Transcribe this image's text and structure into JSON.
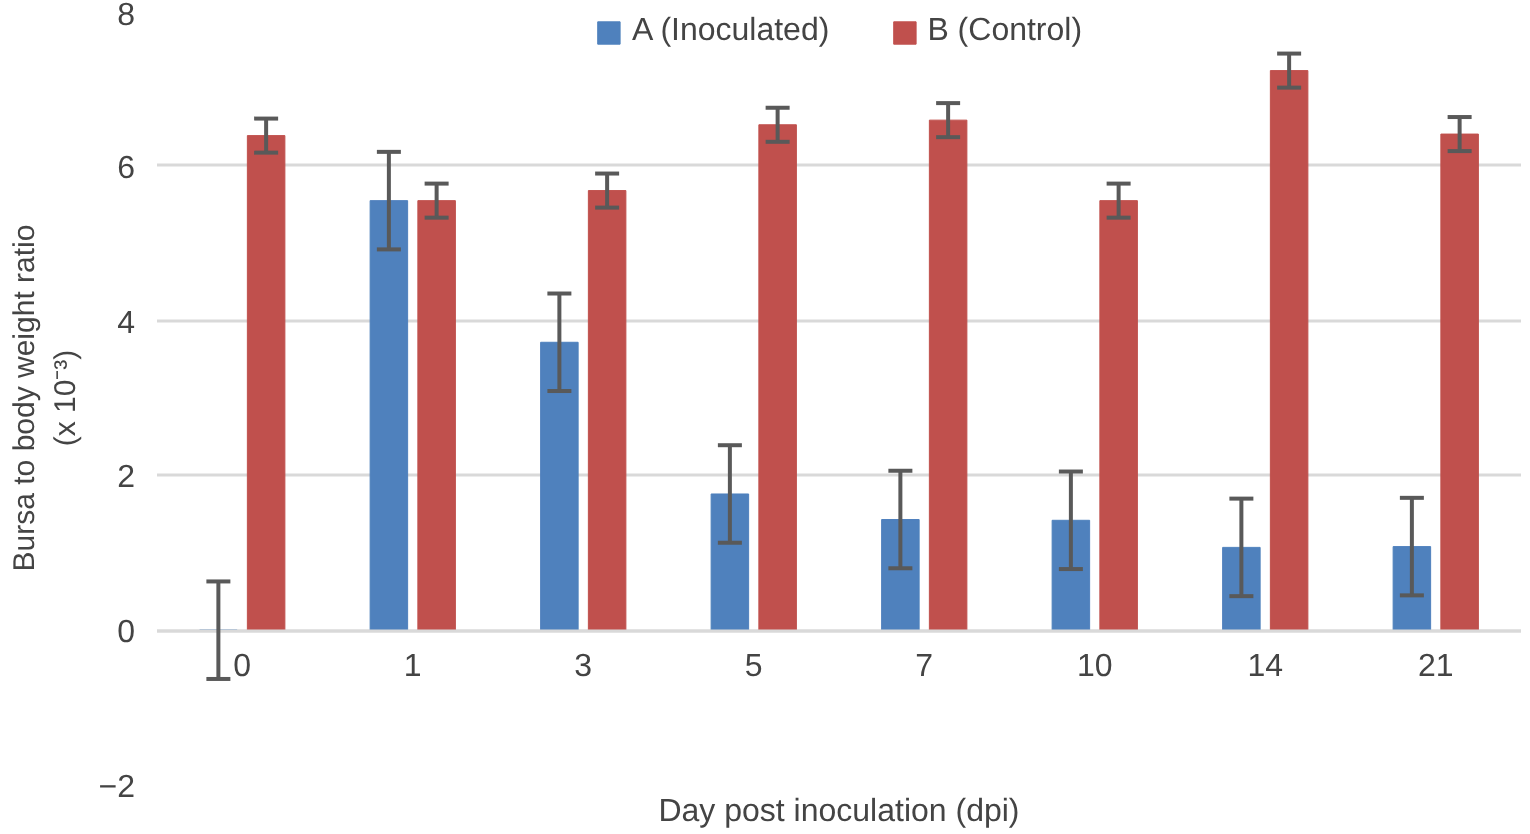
{
  "chart_data": {
    "type": "bar",
    "xlabel": "Day post inoculation (dpi)",
    "ylabel": "Bursa to body weight ratio\n(x 10⁻³)",
    "categories": [
      "0",
      "1",
      "3",
      "5",
      "7",
      "10",
      "14",
      "21"
    ],
    "series": [
      {
        "name": "A (Inoculated)",
        "color": "#4f81bd",
        "values": [
          0,
          5.55,
          3.72,
          1.76,
          1.43,
          1.42,
          1.07,
          1.08
        ],
        "errors": [
          0.63,
          0.63,
          0.63,
          0.63,
          0.63,
          0.63,
          0.63,
          0.63
        ]
      },
      {
        "name": "B (Control)",
        "color": "#c0504d",
        "values": [
          6.39,
          5.55,
          5.68,
          6.53,
          6.59,
          5.55,
          7.23,
          6.41
        ],
        "errors": [
          0.22,
          0.22,
          0.22,
          0.22,
          0.22,
          0.22,
          0.22,
          0.22
        ]
      }
    ],
    "ylim": [
      -2,
      8
    ],
    "yticks": [
      -2,
      0,
      2,
      4,
      6,
      8
    ],
    "grid": "y",
    "legend": "top"
  }
}
